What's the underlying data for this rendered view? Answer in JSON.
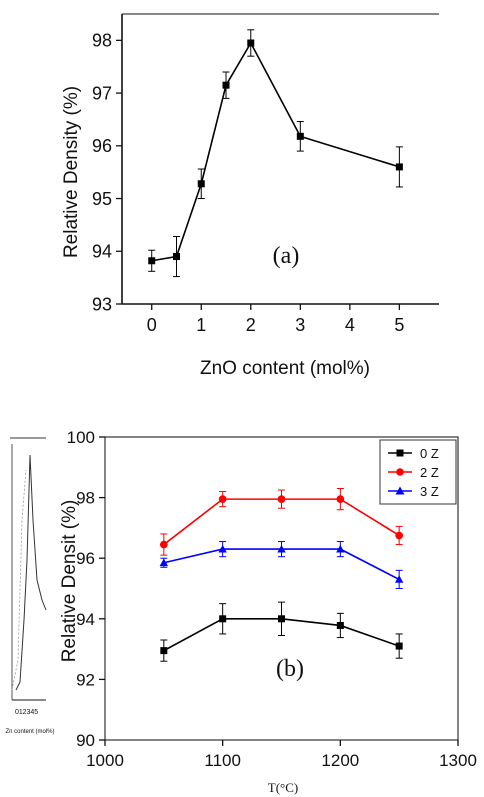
{
  "chart_data": [
    {
      "type": "line",
      "panel_label": "(a)",
      "xlabel": "ZnO content (mol%)",
      "ylabel": "Relative Density (%)",
      "xlim": [
        -0.6,
        5.8
      ],
      "ylim": [
        93,
        98.5
      ],
      "x_ticks": [
        0,
        1,
        2,
        3,
        4,
        5
      ],
      "y_ticks": [
        93,
        94,
        95,
        96,
        97,
        98
      ],
      "series": [
        {
          "color": "#000000",
          "marker": "square",
          "x": [
            0,
            0.5,
            1,
            1.5,
            2,
            3,
            5
          ],
          "y": [
            93.82,
            93.9,
            95.28,
            97.15,
            97.95,
            96.18,
            95.6
          ],
          "err": [
            0.2,
            0.38,
            0.28,
            0.25,
            0.25,
            0.28,
            0.38
          ]
        }
      ]
    },
    {
      "type": "line",
      "panel_label": "(b)",
      "xlabel": "T(°C)",
      "ylabel": "Relative Densit (%)",
      "xlim": [
        1000,
        1300
      ],
      "ylim": [
        90,
        100
      ],
      "x_ticks": [
        1000,
        1100,
        1200,
        1300
      ],
      "y_ticks": [
        90,
        92,
        94,
        96,
        98,
        100
      ],
      "legend_position": "top-right",
      "series": [
        {
          "name": "0 Z",
          "color": "#000000",
          "marker": "square",
          "x": [
            1050,
            1100,
            1150,
            1200,
            1250
          ],
          "y": [
            92.95,
            94.0,
            94.0,
            93.78,
            93.1
          ],
          "err": [
            0.35,
            0.5,
            0.55,
            0.4,
            0.4
          ]
        },
        {
          "name": "2 Z",
          "color": "#ff0000",
          "marker": "circle",
          "x": [
            1050,
            1100,
            1150,
            1200,
            1250
          ],
          "y": [
            96.45,
            97.95,
            97.95,
            97.95,
            96.75
          ],
          "err": [
            0.35,
            0.25,
            0.3,
            0.35,
            0.3
          ]
        },
        {
          "name": "3 Z",
          "color": "#0000ff",
          "marker": "triangle",
          "x": [
            1050,
            1100,
            1150,
            1200,
            1250
          ],
          "y": [
            95.85,
            96.3,
            96.3,
            96.3,
            95.3
          ],
          "err": [
            0.15,
            0.25,
            0.25,
            0.25,
            0.3
          ]
        }
      ]
    }
  ],
  "inset_fragment": {
    "caption": "Zn content (mol%)",
    "ticks": "0 1 2 3 4 5"
  }
}
